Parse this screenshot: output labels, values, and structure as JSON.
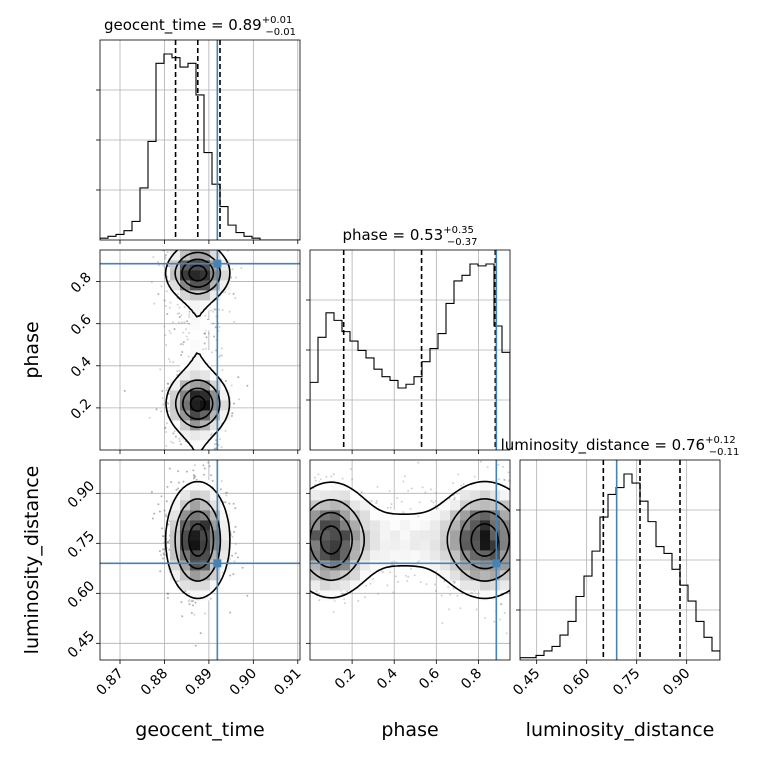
{
  "chart_data": {
    "type": "corner",
    "parameters": [
      {
        "name": "geocent_time",
        "range": [
          0.8655,
          0.9105
        ],
        "ticks": [
          0.87,
          0.88,
          0.89,
          0.9,
          0.91
        ],
        "tick_labels": [
          "0.87",
          "0.88",
          "0.89",
          "0.90",
          "0.91"
        ]
      },
      {
        "name": "phase",
        "range": [
          0.0,
          0.95
        ],
        "ticks": [
          0.2,
          0.4,
          0.6,
          0.8
        ],
        "tick_labels": [
          "0.2",
          "0.4",
          "0.6",
          "0.8"
        ]
      },
      {
        "name": "luminosity_distance",
        "range": [
          0.4,
          1.0
        ],
        "ticks": [
          0.45,
          0.6,
          0.75,
          0.9
        ],
        "tick_labels": [
          "0.45",
          "0.60",
          "0.75",
          "0.90"
        ]
      }
    ],
    "truths": [
      0.8919,
      0.885,
      0.69
    ],
    "titles": [
      {
        "text": "geocent_time = 0.89",
        "sup": "+0.01",
        "sub": "−0.01"
      },
      {
        "text": "phase = 0.53",
        "sup": "+0.35",
        "sub": "−0.37"
      },
      {
        "text": "luminosity_distance = 0.76",
        "sup": "+0.12",
        "sub": "−0.11"
      }
    ],
    "quantiles": [
      [
        0.8825,
        0.8875,
        0.8925
      ],
      [
        0.16,
        0.53,
        0.88
      ],
      [
        0.65,
        0.76,
        0.88
      ]
    ],
    "histograms": [
      {
        "edges_start": 0.8655,
        "bin_width": 0.0018,
        "counts": [
          1,
          2,
          3,
          5,
          10,
          28,
          53,
          95,
          100,
          98,
          93,
          95,
          78,
          47,
          30,
          18,
          8,
          4,
          2,
          1,
          0,
          0,
          0,
          0,
          0
        ]
      },
      {
        "edges_start": 0.0,
        "bin_width": 0.038,
        "counts": [
          36,
          60,
          73,
          69,
          63,
          58,
          53,
          49,
          43,
          39,
          37,
          33,
          35,
          39,
          47,
          54,
          62,
          78,
          90,
          93,
          99,
          98,
          99,
          66,
          52
        ]
      },
      {
        "edges_start": 0.4,
        "bin_width": 0.024,
        "counts": [
          1,
          1,
          2,
          4,
          6,
          11,
          17,
          28,
          37,
          48,
          63,
          73,
          76,
          82,
          78,
          70,
          61,
          50,
          47,
          40,
          33,
          26,
          17,
          10,
          4
        ]
      }
    ],
    "xlabel_axes": [
      "geocent_time",
      "phase",
      "luminosity_distance"
    ],
    "ylabel_axes": [
      "phase",
      "luminosity_distance"
    ],
    "colors": {
      "truth": "#4682b4",
      "line": "#000000",
      "grid": "#b0b0b0"
    }
  }
}
